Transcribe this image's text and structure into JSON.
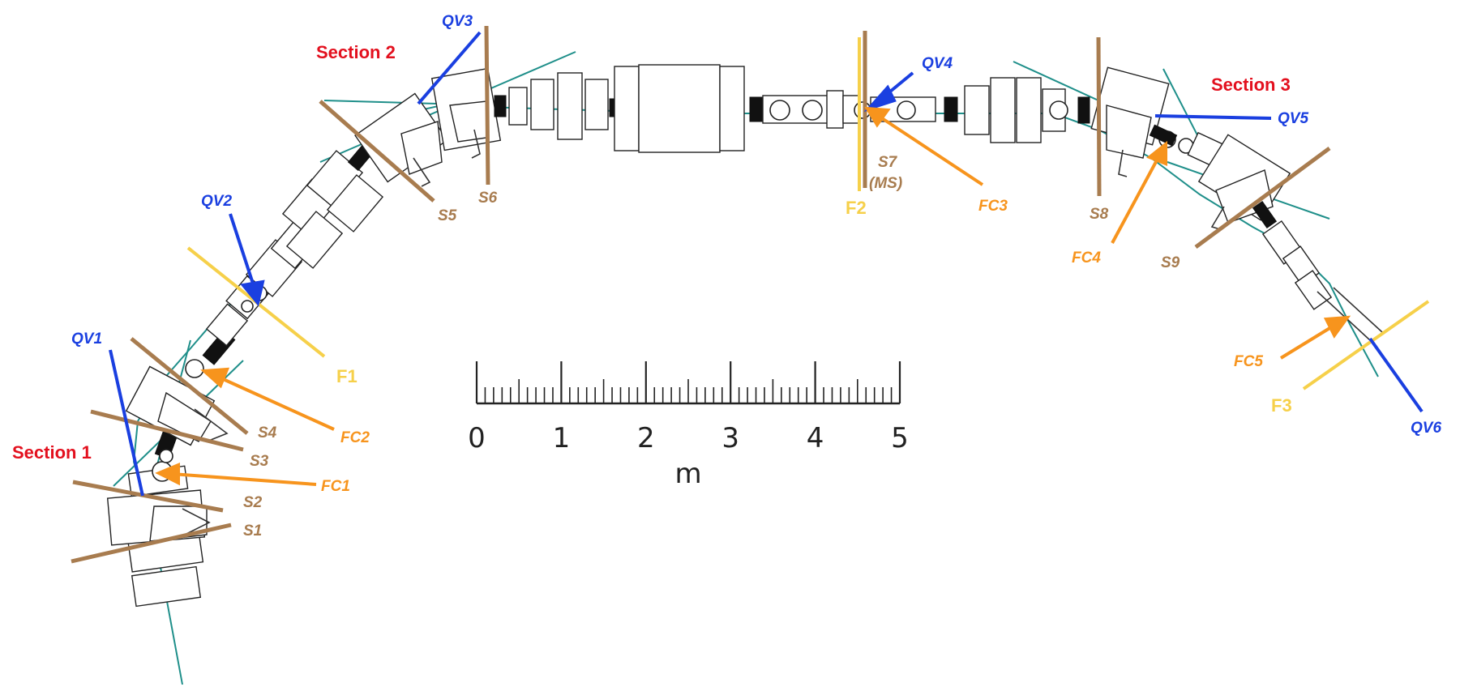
{
  "colors": {
    "section": "#e3101e",
    "qv": "#1a3fe0",
    "fc": "#f7941d",
    "s": "#a87c4f",
    "f": "#f6d04a",
    "beam": "#1f8f8a",
    "ink": "#222222"
  },
  "sections": [
    {
      "id": "sec1",
      "text": "Section 1"
    },
    {
      "id": "sec2",
      "text": "Section 2"
    },
    {
      "id": "sec3",
      "text": "Section 3"
    }
  ],
  "qv_labels": [
    "QV1",
    "QV2",
    "QV3",
    "QV4",
    "QV5",
    "QV6"
  ],
  "fc_labels": [
    "FC1",
    "FC2",
    "FC3",
    "FC4",
    "FC5"
  ],
  "s_labels": [
    "S1",
    "S2",
    "S3",
    "S4",
    "S5",
    "S6",
    "S7",
    "S8",
    "S9"
  ],
  "s7_note": "(MS)",
  "f_labels": [
    "F1",
    "F2",
    "F3"
  ],
  "scale_bar": {
    "ticks": [
      "0",
      "1",
      "2",
      "3",
      "4",
      "5"
    ],
    "unit": "m",
    "max_value": 5,
    "minor_per_unit": 10
  }
}
